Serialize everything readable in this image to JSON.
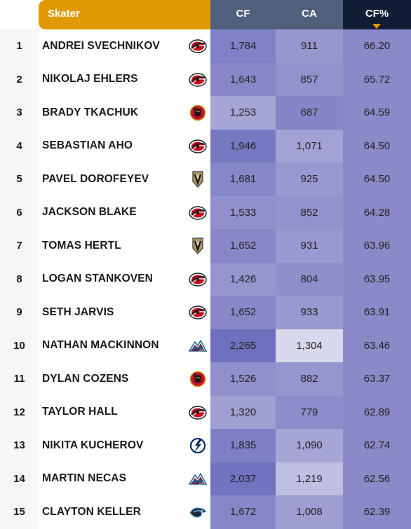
{
  "header": {
    "skater": "Skater",
    "cf": "CF",
    "ca": "CA",
    "cfp": "CF%"
  },
  "chart_data": {
    "type": "table",
    "columns": [
      "",
      "Skater",
      "",
      "CF",
      "CA",
      "CF%"
    ],
    "sorted_by": "CF%",
    "sort_order": "descending",
    "rows": [
      {
        "rank": "1",
        "name": "ANDREI SVECHNIKOV",
        "team": "carolina",
        "cf": "1,784",
        "ca": "911",
        "cfp": "66.20",
        "cf_bg": "#8081c6",
        "ca_bg": "#9697cf"
      },
      {
        "rank": "2",
        "name": "NIKOLAJ EHLERS",
        "team": "carolina",
        "cf": "1,643",
        "ca": "857",
        "cfp": "65.72",
        "cf_bg": "#8888c9",
        "ca_bg": "#9293cd"
      },
      {
        "rank": "3",
        "name": "BRADY TKACHUK",
        "team": "ottawa",
        "cf": "1,253",
        "ca": "687",
        "cfp": "64.59",
        "cf_bg": "#a5a5d6",
        "ca_bg": "#8586c8"
      },
      {
        "rank": "4",
        "name": "SEBASTIAN AHO",
        "team": "carolina",
        "cf": "1,946",
        "ca": "1,071",
        "cfp": "64.50",
        "cf_bg": "#7778c2",
        "ca_bg": "#a2a2d5"
      },
      {
        "rank": "5",
        "name": "PAVEL DOROFEYEV",
        "team": "vegas",
        "cf": "1,681",
        "ca": "925",
        "cfp": "64.50",
        "cf_bg": "#8687c8",
        "ca_bg": "#9798cf"
      },
      {
        "rank": "6",
        "name": "JACKSON BLAKE",
        "team": "carolina",
        "cf": "1,533",
        "ca": "852",
        "cfp": "64.28",
        "cf_bg": "#9090cc",
        "ca_bg": "#9293cd"
      },
      {
        "rank": "7",
        "name": "TOMAS HERTL",
        "team": "vegas",
        "cf": "1,652",
        "ca": "931",
        "cfp": "63.96",
        "cf_bg": "#8888c9",
        "ca_bg": "#9899d0"
      },
      {
        "rank": "8",
        "name": "LOGAN STANKOVEN",
        "team": "carolina",
        "cf": "1,426",
        "ca": "804",
        "cfp": "63.95",
        "cf_bg": "#9596ce",
        "ca_bg": "#8e8fcb"
      },
      {
        "rank": "9",
        "name": "SETH JARVIS",
        "team": "carolina",
        "cf": "1,652",
        "ca": "933",
        "cfp": "63.91",
        "cf_bg": "#8888c9",
        "ca_bg": "#9899d0"
      },
      {
        "rank": "10",
        "name": "NATHAN MACKINNON",
        "team": "colorado",
        "cf": "2,265",
        "ca": "1,304",
        "cfp": "63.46",
        "cf_bg": "#6e6fbe",
        "ca_bg": "#d8d8ec"
      },
      {
        "rank": "11",
        "name": "DYLAN COZENS",
        "team": "ottawa",
        "cf": "1,526",
        "ca": "882",
        "cfp": "63.37",
        "cf_bg": "#9090cc",
        "ca_bg": "#9596ce"
      },
      {
        "rank": "12",
        "name": "TAYLOR HALL",
        "team": "carolina",
        "cf": "1,320",
        "ca": "779",
        "cfp": "62.89",
        "cf_bg": "#a0a0d3",
        "ca_bg": "#8c8dca"
      },
      {
        "rank": "13",
        "name": "NIKITA KUCHEROV",
        "team": "tampa",
        "cf": "1,835",
        "ca": "1,090",
        "cfp": "62.74",
        "cf_bg": "#7e7fc5",
        "ca_bg": "#a5a5d6"
      },
      {
        "rank": "14",
        "name": "MARTIN NECAS",
        "team": "colorado",
        "cf": "2,037",
        "ca": "1,219",
        "cfp": "62.56",
        "cf_bg": "#7273c0",
        "ca_bg": "#bfbfe2"
      },
      {
        "rank": "15",
        "name": "CLAYTON KELLER",
        "team": "utah",
        "cf": "1,672",
        "ca": "1,008",
        "cfp": "62.39",
        "cf_bg": "#8687c8",
        "ca_bg": "#9e9ed3"
      }
    ]
  }
}
